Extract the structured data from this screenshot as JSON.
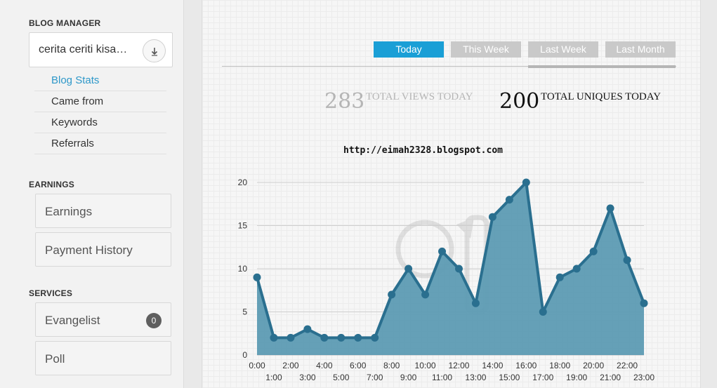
{
  "sidebar": {
    "blog_manager": {
      "heading": "BLOG MANAGER",
      "selected_blog": "cerita ceriti kisa…",
      "nav": [
        {
          "label": "Blog Stats",
          "active": true
        },
        {
          "label": "Came from",
          "active": false
        },
        {
          "label": "Keywords",
          "active": false
        },
        {
          "label": "Referrals",
          "active": false
        }
      ]
    },
    "earnings": {
      "heading": "EARNINGS",
      "items": [
        {
          "label": "Earnings"
        },
        {
          "label": "Payment History"
        }
      ]
    },
    "services": {
      "heading": "SERVICES",
      "items": [
        {
          "label": "Evangelist",
          "badge": "0"
        },
        {
          "label": "Poll"
        }
      ]
    }
  },
  "main": {
    "tabs": [
      {
        "label": "Today",
        "active": true
      },
      {
        "label": "This Week",
        "active": false
      },
      {
        "label": "Last Week",
        "active": false
      },
      {
        "label": "Last Month",
        "active": false
      }
    ],
    "stats": {
      "views_value": "283",
      "views_label": "TOTAL VIEWS TODAY",
      "uniques_value": "200",
      "uniques_label": "TOTAL UNIQUES TODAY"
    },
    "watermark_text": "http://eimah2328.blogspot.com"
  },
  "colors": {
    "accent": "#1a9fd6",
    "series_line": "#2a6f8f",
    "series_fill": "#5d9bb3",
    "tab_inactive": "#c9c9c9"
  },
  "chart_data": {
    "type": "area",
    "title": "",
    "xlabel": "",
    "ylabel": "",
    "x": [
      "0:00",
      "1:00",
      "2:00",
      "3:00",
      "4:00",
      "5:00",
      "6:00",
      "7:00",
      "8:00",
      "9:00",
      "10:00",
      "11:00",
      "12:00",
      "13:00",
      "14:00",
      "15:00",
      "16:00",
      "17:00",
      "18:00",
      "19:00",
      "20:00",
      "21:00",
      "22:00",
      "23:00"
    ],
    "series": [
      {
        "values": [
          9,
          2,
          2,
          3,
          2,
          2,
          2,
          2,
          7,
          10,
          7,
          12,
          10,
          6,
          16,
          18,
          20,
          5,
          9,
          10,
          12,
          17,
          11,
          6
        ]
      }
    ],
    "ylim": [
      0,
      20
    ],
    "yticks": [
      0,
      5,
      10,
      15,
      20
    ],
    "grid": true,
    "legend": "none"
  }
}
